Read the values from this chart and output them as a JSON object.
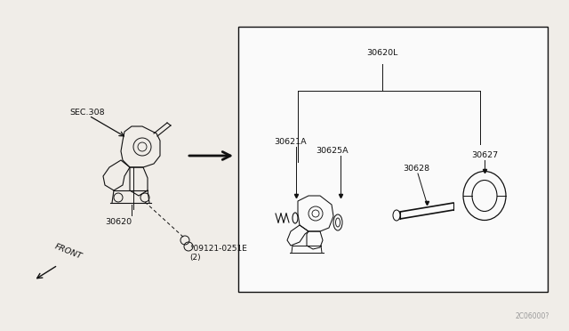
{
  "bg_color": "#f0ede8",
  "box_color": "#ffffff",
  "line_color": "#111111",
  "text_color": "#111111",
  "watermark": "2C06000?",
  "labels": {
    "SEC308": "SEC.308",
    "30620": "30620",
    "bolt": "°09121-0251E\n(2)",
    "FRONT": "FRONT",
    "30620L": "30620L",
    "30625A": "30625A",
    "30621A": "30621A",
    "30628": "30628",
    "30627": "30627"
  }
}
